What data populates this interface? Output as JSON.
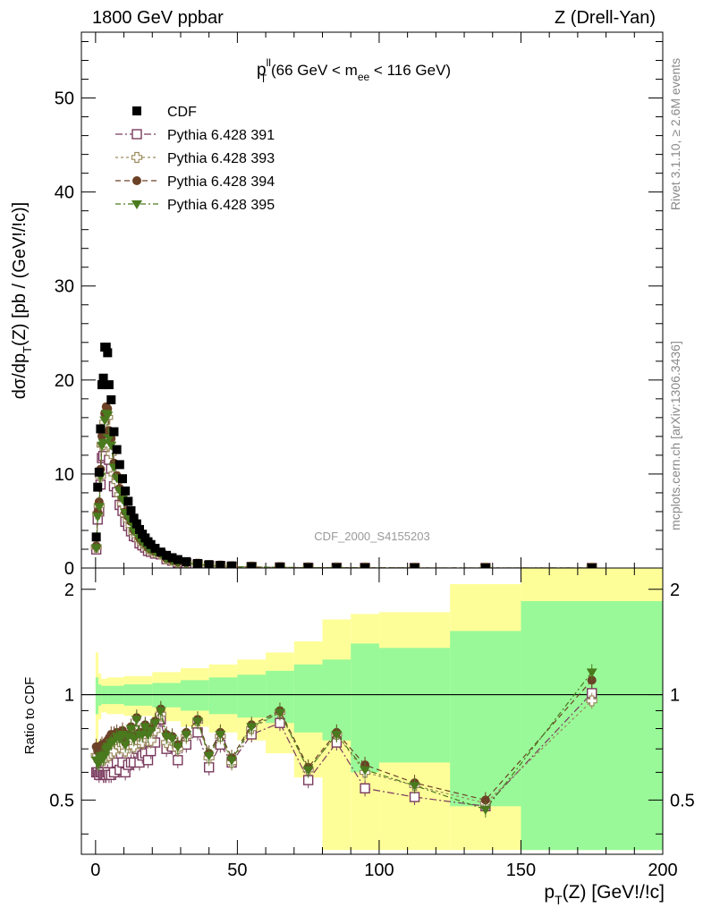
{
  "header": {
    "left": "1800 GeV ppbar",
    "right": "Z (Drell-Yan)"
  },
  "side_texts": {
    "rivet": "Rivet 3.1.10, ≥ 2.6M events",
    "mcplots": "mcplots.cern.ch [arXiv:1306.3436]"
  },
  "chart_data": [
    {
      "type": "scatter",
      "panel": "main",
      "title": "p_T^ll (66 GeV < m_ee < 116 GeV)",
      "title_parts": {
        "p": "p",
        "sup": "ll",
        "sub": "T",
        "rest": " (66 GeV < m",
        "sub2": "ee",
        "tail": " < 116 GeV)"
      },
      "ylabel_parts": {
        "a": "dσ/dp",
        "sub": "T",
        "b": "(Z) [pb / (GeV!/!c)]"
      },
      "xlim": [
        -5,
        200
      ],
      "ylim": [
        0,
        57
      ],
      "yticks": [
        0,
        10,
        20,
        30,
        40,
        50
      ],
      "watermark": "CDF_2000_S4155203",
      "x": [
        0.25,
        0.75,
        1.25,
        1.75,
        2.25,
        2.75,
        3.25,
        3.75,
        4.25,
        4.75,
        5.5,
        6.5,
        7.5,
        8.5,
        9.5,
        10.5,
        11.5,
        12.5,
        13.5,
        14.5,
        15.5,
        16.5,
        17.5,
        18.5,
        19.5,
        21,
        23,
        25,
        27,
        29,
        32,
        36,
        40,
        44,
        48,
        55,
        65,
        75,
        85,
        95,
        112.5,
        137.5,
        175
      ],
      "series": [
        {
          "name": "CDF",
          "color": "#000000",
          "marker": "square-filled",
          "values": [
            3.3,
            8.6,
            10.2,
            14.8,
            19.5,
            20.2,
            23.5,
            23.5,
            22.9,
            19.5,
            17.9,
            14.5,
            12.6,
            11.0,
            9.5,
            8.2,
            7.1,
            6.1,
            5.3,
            4.7,
            4.1,
            3.6,
            3.2,
            2.8,
            2.5,
            2.1,
            1.7,
            1.35,
            1.1,
            0.9,
            0.68,
            0.48,
            0.36,
            0.28,
            0.22,
            0.14,
            0.08,
            0.05,
            0.035,
            0.025,
            0.014,
            0.006,
            0.002
          ]
        },
        {
          "name": "Pythia 6.428 391",
          "color": "#7a3b5e",
          "marker": "square-open",
          "dash": "8,3,2,3",
          "ratio": [
            0.6,
            0.6,
            0.59,
            0.6,
            0.6,
            0.59,
            0.59,
            0.59,
            0.6,
            0.59,
            0.59,
            0.6,
            0.64,
            0.61,
            0.64,
            0.6,
            0.63,
            0.64,
            0.64,
            0.7,
            0.64,
            0.67,
            0.68,
            0.65,
            0.69,
            0.73,
            0.85,
            0.7,
            0.71,
            0.65,
            0.72,
            0.78,
            0.62,
            0.72,
            0.64,
            0.77,
            0.83,
            0.57,
            0.73,
            0.54,
            0.51,
            0.48,
            1.01
          ]
        },
        {
          "name": "Pythia 6.428 393",
          "color": "#9b8a5e",
          "marker": "cross-open",
          "dash": "3,3",
          "ratio": [
            0.67,
            0.67,
            0.65,
            0.66,
            0.67,
            0.65,
            0.66,
            0.7,
            0.7,
            0.67,
            0.68,
            0.69,
            0.73,
            0.71,
            0.72,
            0.69,
            0.72,
            0.74,
            0.71,
            0.79,
            0.73,
            0.73,
            0.76,
            0.74,
            0.74,
            0.79,
            0.88,
            0.73,
            0.74,
            0.7,
            0.76,
            0.84,
            0.66,
            0.76,
            0.64,
            0.8,
            0.89,
            0.61,
            0.77,
            0.6,
            0.55,
            0.49,
            0.96
          ]
        },
        {
          "name": "Pythia 6.428 394",
          "color": "#6b4226",
          "marker": "circle-filled",
          "dash": "6,4",
          "ratio": [
            0.71,
            0.69,
            0.69,
            0.71,
            0.72,
            0.71,
            0.7,
            0.73,
            0.74,
            0.75,
            0.77,
            0.77,
            0.78,
            0.77,
            0.79,
            0.73,
            0.77,
            0.81,
            0.76,
            0.86,
            0.78,
            0.78,
            0.82,
            0.78,
            0.8,
            0.84,
            0.91,
            0.77,
            0.76,
            0.72,
            0.78,
            0.85,
            0.68,
            0.78,
            0.66,
            0.82,
            0.9,
            0.62,
            0.78,
            0.63,
            0.56,
            0.5,
            1.1
          ]
        },
        {
          "name": "Pythia 6.428 395",
          "color": "#4a7a1e",
          "marker": "triangle-down-filled",
          "dash": "6,3,2,3",
          "ratio": [
            0.65,
            0.64,
            0.64,
            0.66,
            0.67,
            0.66,
            0.67,
            0.7,
            0.71,
            0.71,
            0.73,
            0.74,
            0.76,
            0.75,
            0.77,
            0.72,
            0.76,
            0.8,
            0.75,
            0.85,
            0.77,
            0.77,
            0.81,
            0.77,
            0.79,
            0.83,
            0.9,
            0.76,
            0.75,
            0.71,
            0.77,
            0.84,
            0.67,
            0.77,
            0.65,
            0.81,
            0.89,
            0.61,
            0.77,
            0.61,
            0.55,
            0.47,
            1.16
          ]
        }
      ],
      "legend": "top-left"
    },
    {
      "type": "scatter",
      "panel": "ratio",
      "ylabel": "Ratio to CDF",
      "xlabel_parts": {
        "a": "p",
        "sub": "T",
        "b": "(Z) [GeV!/!c]"
      },
      "xlim": [
        -5,
        200
      ],
      "ylim": [
        0.35,
        2.3
      ],
      "xticks": [
        0,
        50,
        100,
        150,
        200
      ],
      "yticks": [
        0.5,
        1,
        2
      ],
      "reference_line": 1,
      "band_colors": {
        "inner": "#99f998",
        "outer": "#fefe99"
      },
      "bins": [
        {
          "lo": 0,
          "hi": 1,
          "inner": 0.12,
          "outer": 0.32
        },
        {
          "lo": 1,
          "hi": 2,
          "inner": 0.07,
          "outer": 0.15
        },
        {
          "lo": 2,
          "hi": 4,
          "inner": 0.06,
          "outer": 0.11
        },
        {
          "lo": 4,
          "hi": 10,
          "inner": 0.06,
          "outer": 0.12
        },
        {
          "lo": 10,
          "hi": 20,
          "inner": 0.07,
          "outer": 0.13
        },
        {
          "lo": 20,
          "hi": 30,
          "inner": 0.08,
          "outer": 0.16
        },
        {
          "lo": 30,
          "hi": 40,
          "inner": 0.1,
          "outer": 0.19
        },
        {
          "lo": 40,
          "hi": 50,
          "inner": 0.12,
          "outer": 0.22
        },
        {
          "lo": 50,
          "hi": 60,
          "inner": 0.14,
          "outer": 0.26
        },
        {
          "lo": 60,
          "hi": 70,
          "inner": 0.17,
          "outer": 0.32
        },
        {
          "lo": 70,
          "hi": 80,
          "inner": 0.22,
          "outer": 0.42
        },
        {
          "lo": 80,
          "hi": 90,
          "inner": 0.26,
          "outer": 0.64
        },
        {
          "lo": 90,
          "hi": 100,
          "inner": 0.4,
          "outer": 0.7
        },
        {
          "lo": 100,
          "hi": 125,
          "inner": 0.36,
          "outer": 0.72
        },
        {
          "lo": 125,
          "hi": 150,
          "inner": 0.52,
          "outer": 1.07
        },
        {
          "lo": 150,
          "hi": 200,
          "inner": 0.85,
          "outer": 1.6
        }
      ]
    }
  ]
}
